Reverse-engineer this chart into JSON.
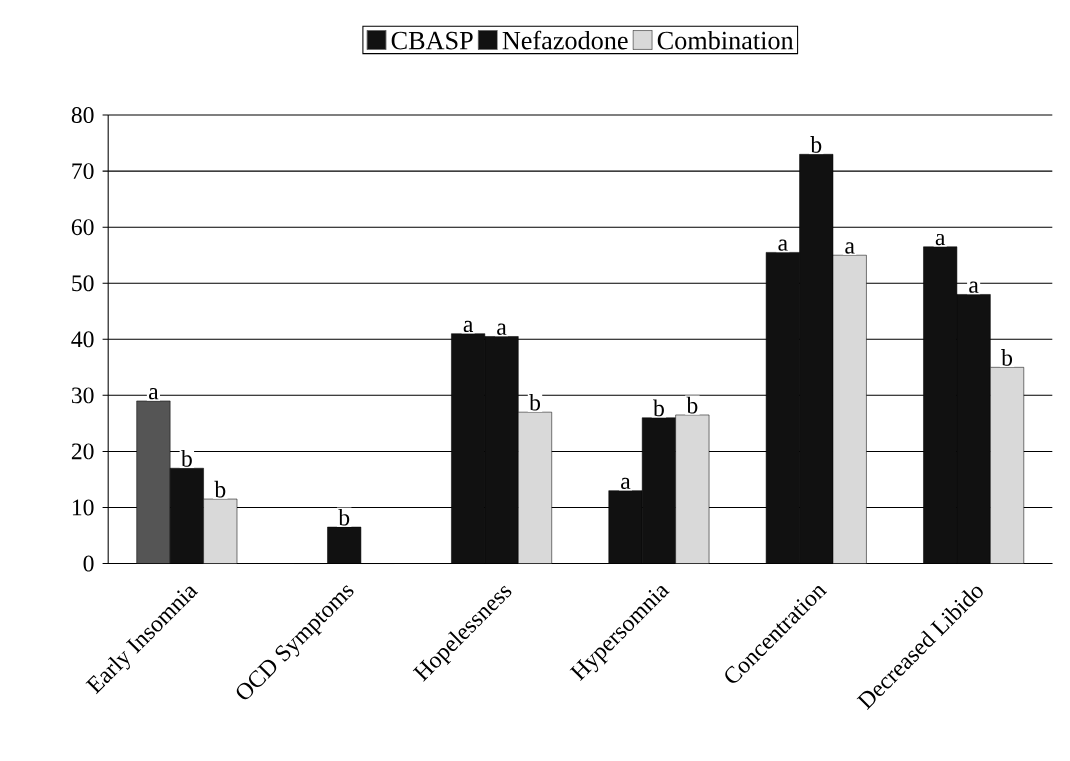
{
  "chart_data": {
    "type": "bar",
    "categories": [
      "Early Insomnia",
      "OCD Symptoms",
      "Hopelessness",
      "Hypersomnia",
      "Concentration",
      "Decreased Libido"
    ],
    "series": [
      {
        "name": "CBASP",
        "color": "#111111",
        "colors": [
          "#555555",
          "#111111",
          "#111111",
          "#111111",
          "#111111",
          "#111111"
        ],
        "values": [
          29,
          0,
          41,
          13,
          55.5,
          56.5
        ]
      },
      {
        "name": "Nefazodone",
        "color": "#111111",
        "values": [
          17,
          6.5,
          40.5,
          26,
          73,
          48
        ]
      },
      {
        "name": "Combination",
        "color": "#d9d9d9",
        "values": [
          11.5,
          0,
          27,
          26.5,
          55,
          35
        ]
      }
    ],
    "ylim": [
      0,
      80
    ],
    "yticks": [
      0,
      10,
      20,
      30,
      40,
      50,
      60,
      70,
      80
    ],
    "grid": "y",
    "legend": "top",
    "annotations": [
      "a",
      "b",
      "b",
      "b",
      "a",
      "a",
      "b",
      "a",
      "b",
      "b",
      "a",
      "b",
      "a",
      "a",
      "a",
      "b"
    ]
  }
}
